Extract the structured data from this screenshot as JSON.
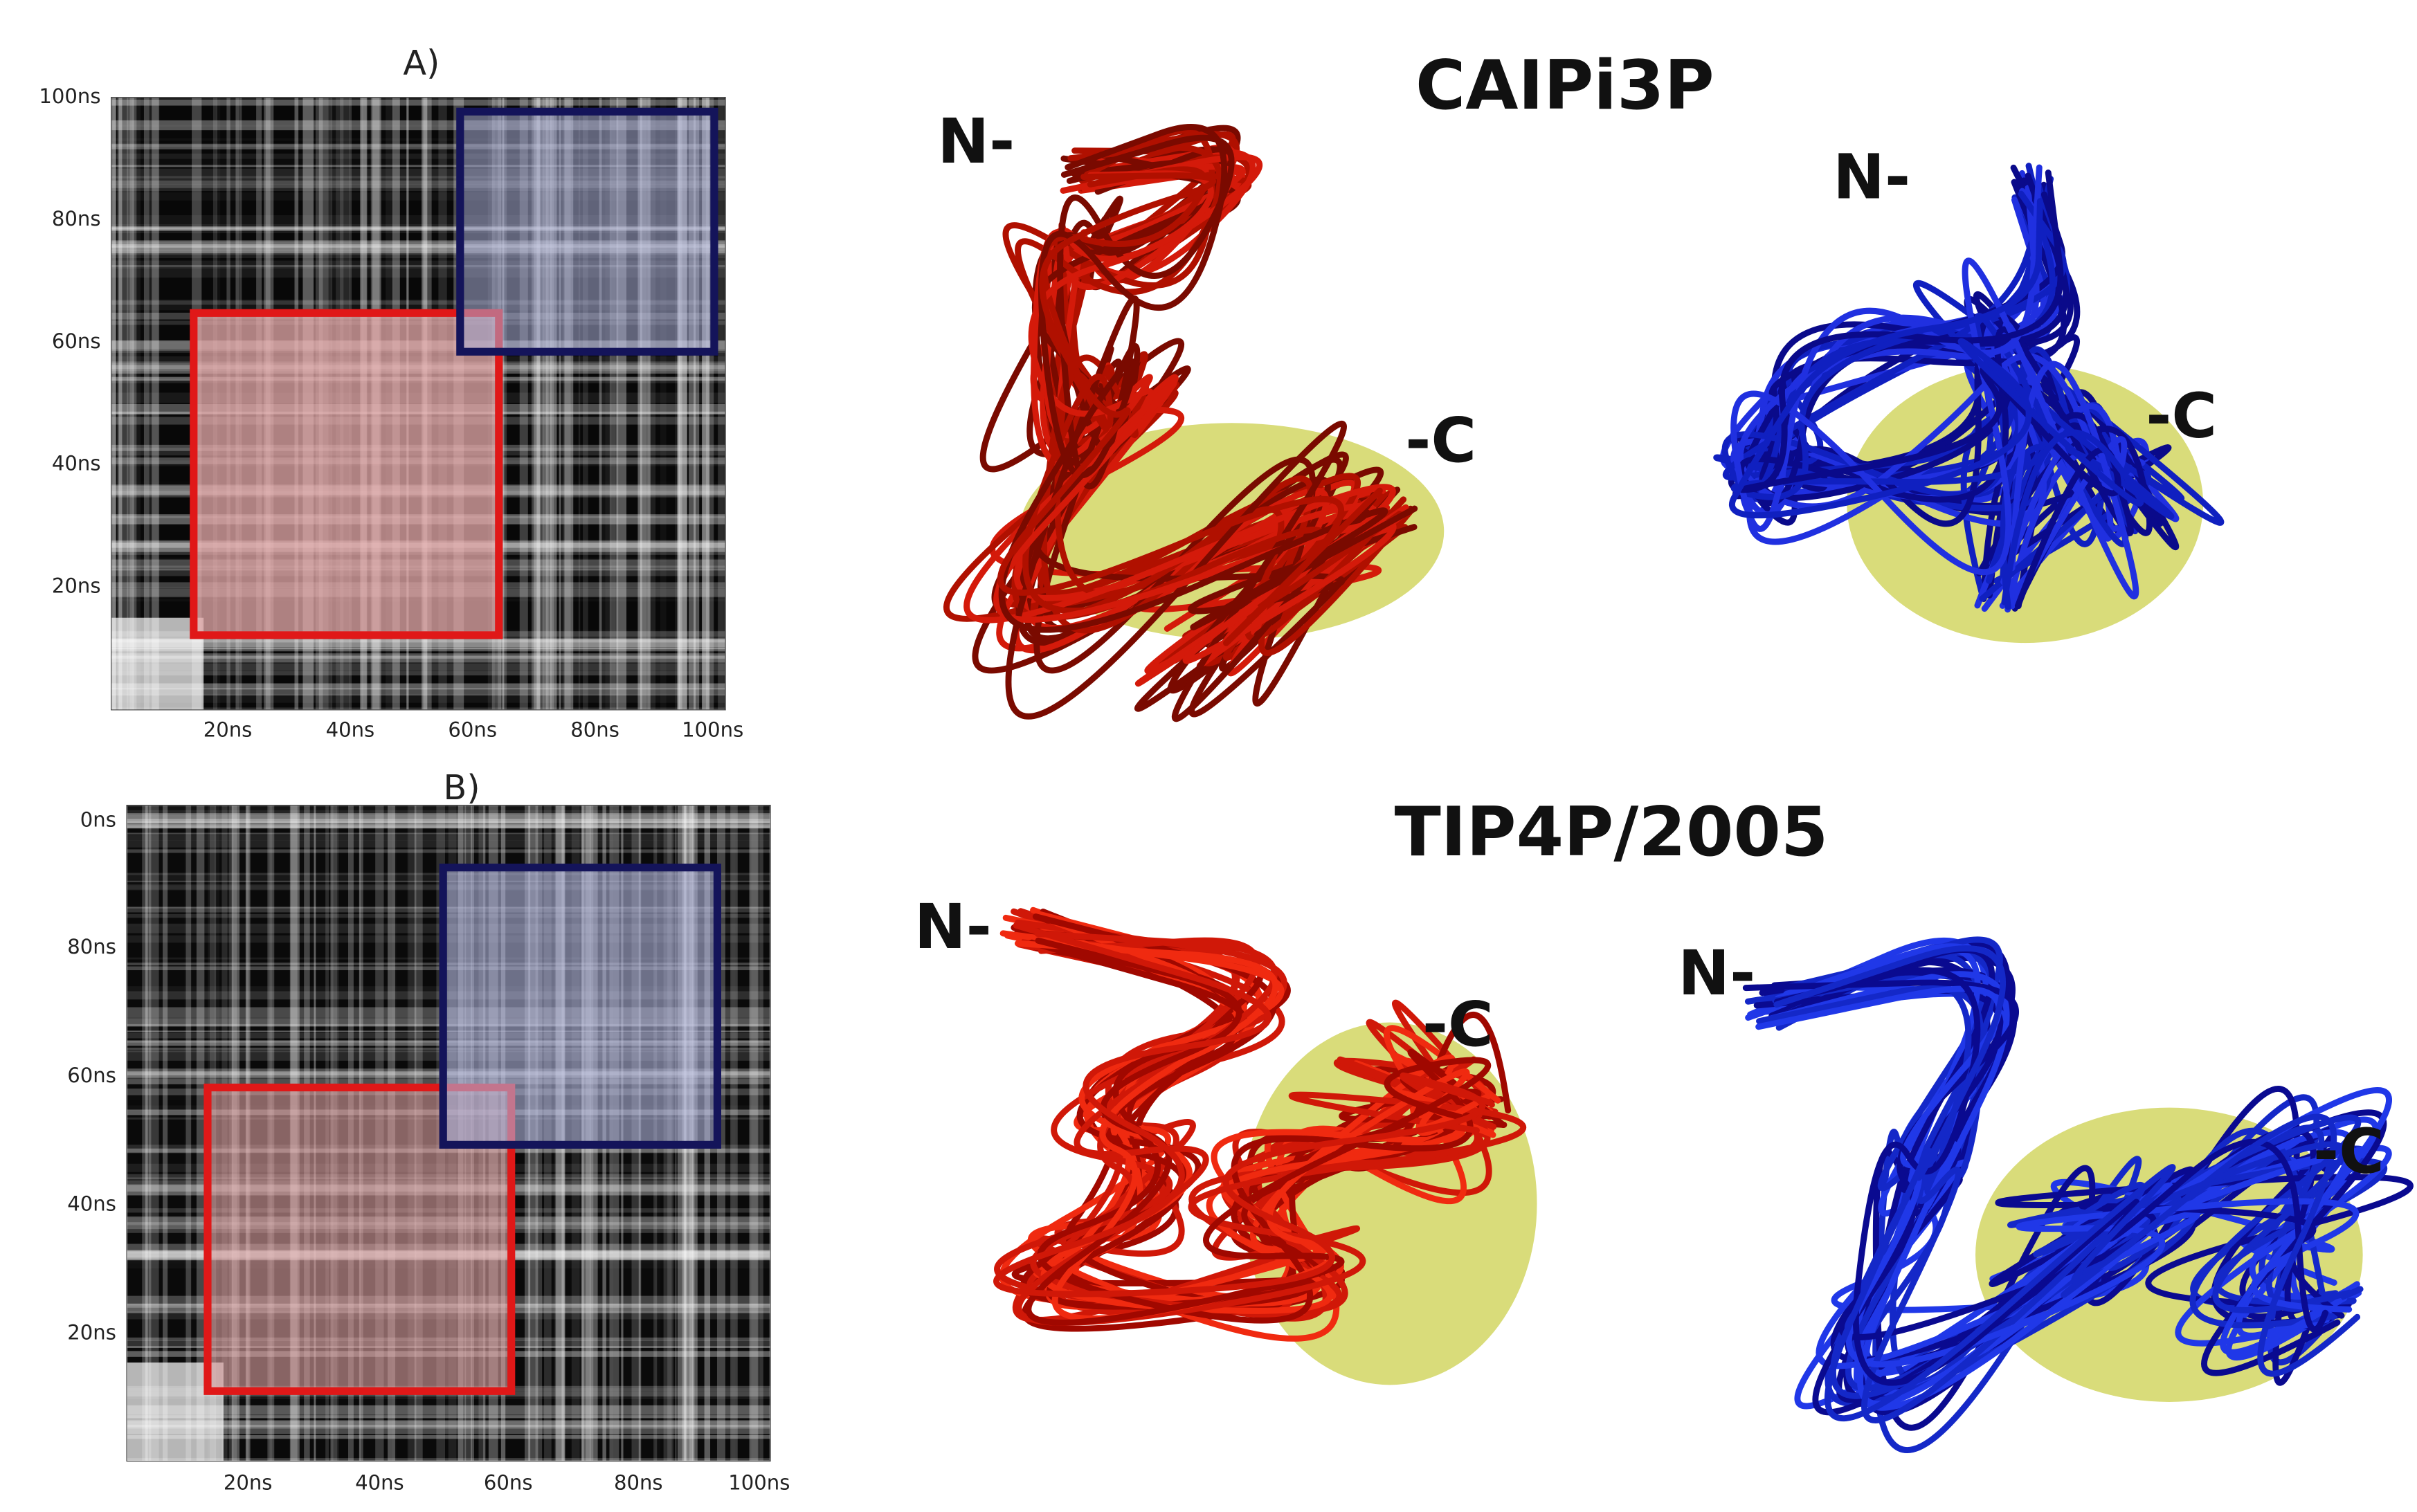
{
  "panels": [
    {
      "label": "A)",
      "y_ticks": [
        "100ns",
        "80ns",
        "60ns",
        "40ns",
        "20ns"
      ],
      "x_ticks": [
        "20ns",
        "40ns",
        "60ns",
        "80ns",
        "100ns"
      ]
    },
    {
      "label": "B)",
      "y_ticks": [
        "0ns",
        "80ns",
        "60ns",
        "40ns",
        "20ns"
      ],
      "x_ticks": [
        "20ns",
        "40ns",
        "60ns",
        "80ns",
        "100ns"
      ]
    }
  ],
  "models": [
    {
      "title": "CAIPi3P",
      "labels": [
        "N-",
        "-C",
        "N-",
        "-C"
      ]
    },
    {
      "title": "TIP4P/2005",
      "labels": [
        "N-",
        "-C",
        "N-",
        "-C"
      ]
    }
  ]
}
